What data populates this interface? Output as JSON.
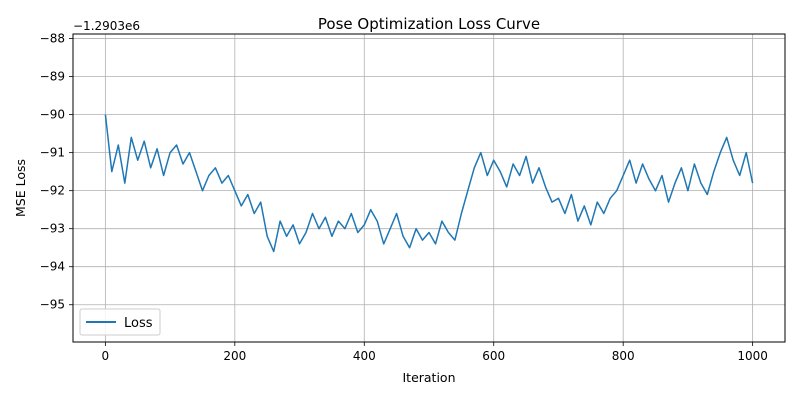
{
  "chart_data": {
    "type": "line",
    "title": "Pose Optimization Loss Curve",
    "xlabel": "Iteration",
    "ylabel": "MSE Loss",
    "y_offset_label": "−1.2903e6",
    "xlim": [
      -50,
      1050
    ],
    "ylim": [
      -95.98,
      -87.88
    ],
    "xticks": [
      0,
      200,
      400,
      600,
      800,
      1000
    ],
    "yticks": [
      -95,
      -94,
      -93,
      -92,
      -91,
      -90,
      -89,
      -88
    ],
    "ytick_labels": [
      "−95",
      "−94",
      "−93",
      "−92",
      "−91",
      "−90",
      "−89",
      "−88"
    ],
    "grid": true,
    "legend_position": "lower-left",
    "series_color": "#1f77b4",
    "series": [
      {
        "name": "Loss",
        "x": [
          0,
          10,
          20,
          30,
          40,
          50,
          60,
          70,
          80,
          90,
          100,
          110,
          120,
          130,
          140,
          150,
          160,
          170,
          180,
          190,
          200,
          210,
          220,
          230,
          240,
          250,
          260,
          270,
          280,
          290,
          300,
          310,
          320,
          330,
          340,
          350,
          360,
          370,
          380,
          390,
          400,
          410,
          420,
          430,
          440,
          450,
          460,
          470,
          480,
          490,
          500,
          510,
          520,
          530,
          540,
          550,
          560,
          570,
          580,
          590,
          600,
          610,
          620,
          630,
          640,
          650,
          660,
          670,
          680,
          690,
          700,
          710,
          720,
          730,
          740,
          750,
          760,
          770,
          780,
          790,
          800,
          810,
          820,
          830,
          840,
          850,
          860,
          870,
          880,
          890,
          900,
          910,
          920,
          930,
          940,
          950,
          960,
          970,
          980,
          990,
          1000
        ],
        "y": [
          -90.0,
          -91.5,
          -90.8,
          -91.8,
          -90.6,
          -91.2,
          -90.7,
          -91.4,
          -90.9,
          -91.6,
          -91.0,
          -90.8,
          -91.3,
          -91.0,
          -91.5,
          -92.0,
          -91.6,
          -91.4,
          -91.8,
          -91.6,
          -92.0,
          -92.4,
          -92.1,
          -92.6,
          -92.3,
          -93.2,
          -93.6,
          -92.8,
          -93.2,
          -92.9,
          -93.4,
          -93.1,
          -92.6,
          -93.0,
          -92.7,
          -93.2,
          -92.8,
          -93.0,
          -92.6,
          -93.1,
          -92.9,
          -92.5,
          -92.8,
          -93.4,
          -93.0,
          -92.6,
          -93.2,
          -93.5,
          -93.0,
          -93.3,
          -93.1,
          -93.4,
          -92.8,
          -93.1,
          -93.3,
          -92.6,
          -92.0,
          -91.4,
          -91.0,
          -91.6,
          -91.2,
          -91.5,
          -91.9,
          -91.3,
          -91.6,
          -91.1,
          -91.8,
          -91.4,
          -91.9,
          -92.3,
          -92.2,
          -92.6,
          -92.1,
          -92.8,
          -92.4,
          -92.9,
          -92.3,
          -92.6,
          -92.2,
          -92.0,
          -91.6,
          -91.2,
          -91.8,
          -91.3,
          -91.7,
          -92.0,
          -91.6,
          -92.3,
          -91.8,
          -91.4,
          -92.0,
          -91.3,
          -91.8,
          -92.1,
          -91.5,
          -91.0,
          -90.6,
          -91.2,
          -91.6,
          -91.0,
          -91.8
        ]
      }
    ]
  }
}
